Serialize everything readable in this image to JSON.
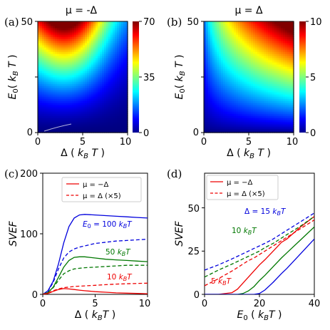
{
  "chart_data": [
    {
      "panel": "(a)",
      "type": "heatmap",
      "title": "μ = -Δ",
      "xlabel": "Δ ( k_B T )",
      "ylabel": "E_0 ( k_B T )",
      "xlim": [
        0,
        10
      ],
      "ylim": [
        0,
        50
      ],
      "xticks": [
        "0",
        "5",
        "10"
      ],
      "yticks": [
        "0",
        "25",
        "50"
      ],
      "colorbar": {
        "min": 0,
        "max": 70,
        "ticks": [
          "0",
          "35",
          "70"
        ],
        "colormap": "jet"
      }
    },
    {
      "panel": "(b)",
      "type": "heatmap",
      "title": "μ = Δ",
      "xlabel": "Δ ( k_B T )",
      "ylabel": "E_0 ( k_B T )",
      "xlim": [
        0,
        10
      ],
      "ylim": [
        0,
        50
      ],
      "xticks": [
        "0",
        "5",
        "10"
      ],
      "yticks": [
        "0",
        "25",
        "50"
      ],
      "colorbar": {
        "min": 0,
        "max": 10,
        "ticks": [
          "0",
          "5",
          "10"
        ],
        "colormap": "jet"
      }
    },
    {
      "panel": "(c)",
      "type": "line",
      "xlabel": "Δ ( k_B T )",
      "ylabel": "SVEF",
      "xlim": [
        0,
        10
      ],
      "ylim": [
        0,
        200
      ],
      "xticks": [
        "0",
        "5",
        "10"
      ],
      "yticks": [
        "0",
        "100",
        "200"
      ],
      "legend": {
        "placement": "top-right",
        "entries": [
          "μ = −Δ",
          "μ = Δ (×5)"
        ]
      },
      "annotations": [
        {
          "text": "E_0 = 100 k_BT",
          "color": "#0000dd"
        },
        {
          "text": "50 k_BT",
          "color": "#007700"
        },
        {
          "text": "10 k_BT",
          "color": "#ee0000"
        }
      ],
      "x": [
        0,
        0.5,
        1,
        1.5,
        2,
        2.5,
        3,
        3.5,
        4,
        5,
        6,
        7,
        8,
        9,
        10
      ],
      "series": [
        {
          "group": "E_0 = 100 k_BT",
          "style": "solid",
          "color": "#0000dd",
          "values": [
            0,
            6,
            22,
            50,
            85,
            112,
            126,
            131,
            132,
            131,
            130,
            129,
            128,
            127,
            126
          ]
        },
        {
          "group": "E_0 = 100 k_BT",
          "style": "dashed",
          "color": "#0000dd",
          "values": [
            0,
            5,
            20,
            42,
            60,
            70,
            75,
            78,
            80,
            84,
            86,
            88,
            89,
            90,
            91
          ]
        },
        {
          "group": "50 k_BT",
          "style": "solid",
          "color": "#007700",
          "values": [
            0,
            3,
            12,
            28,
            45,
            56,
            61,
            62,
            62,
            60,
            58,
            57,
            56,
            55,
            54
          ]
        },
        {
          "group": "50 k_BT",
          "style": "dashed",
          "color": "#007700",
          "values": [
            0,
            3,
            11,
            23,
            34,
            39,
            42,
            43,
            44,
            45,
            46,
            47,
            48,
            48,
            48
          ]
        },
        {
          "group": "10 k_BT",
          "style": "solid",
          "color": "#ee0000",
          "values": [
            0,
            1.5,
            5,
            8,
            9.5,
            9,
            8,
            7,
            6,
            4.5,
            3.5,
            2.5,
            2,
            1.5,
            1
          ]
        },
        {
          "group": "10 k_BT",
          "style": "dashed",
          "color": "#ee0000",
          "values": [
            0,
            2,
            6,
            9,
            11,
            12,
            13,
            13.5,
            14,
            15,
            16,
            17,
            17.5,
            18,
            18.5
          ]
        }
      ]
    },
    {
      "panel": "(d)",
      "type": "line",
      "xlabel": "E_0 ( k_BT )",
      "ylabel": "SVEF",
      "xlim": [
        0,
        40
      ],
      "ylim": [
        0,
        70
      ],
      "xticks": [
        "0",
        "20",
        "40"
      ],
      "yticks": [
        "0",
        "25",
        "50"
      ],
      "legend": {
        "placement": "top-left",
        "entries": [
          "μ = −Δ",
          "μ = Δ (×5)"
        ]
      },
      "annotations": [
        {
          "text": "Δ = 15 k_BT",
          "color": "#0000dd"
        },
        {
          "text": "10 k_BT",
          "color": "#007700"
        },
        {
          "text": "5 k_BT",
          "color": "#ee0000"
        }
      ],
      "x": [
        0,
        5,
        10,
        12,
        14,
        16,
        18,
        20,
        22,
        25,
        28,
        30,
        35,
        40
      ],
      "series": [
        {
          "group": "5 k_BT",
          "style": "solid",
          "color": "#ee0000",
          "values": [
            0,
            0,
            1,
            3,
            6.5,
            10,
            13.5,
            17,
            20,
            25,
            30,
            32,
            39,
            45
          ]
        },
        {
          "group": "10 k_BT",
          "style": "solid",
          "color": "#007700",
          "values": [
            0,
            0,
            0,
            0,
            0.5,
            2,
            4.5,
            8,
            11,
            16,
            21,
            24,
            31.5,
            39
          ]
        },
        {
          "group": "Δ = 15 k_BT",
          "style": "solid",
          "color": "#0000dd",
          "values": [
            0,
            0,
            0,
            0,
            0,
            0,
            0,
            0.5,
            2.5,
            7,
            12,
            15,
            23.5,
            32
          ]
        },
        {
          "group": "5 k_BT",
          "style": "dashed",
          "color": "#ee0000",
          "values": [
            5,
            9,
            13.5,
            15.5,
            17.5,
            19.5,
            21,
            23,
            25,
            28,
            31,
            33,
            38,
            43
          ]
        },
        {
          "group": "10 k_BT",
          "style": "dashed",
          "color": "#007700",
          "values": [
            10,
            14,
            17.5,
            19,
            20.5,
            22,
            23.5,
            25,
            27,
            29.5,
            32.5,
            34.5,
            39.5,
            45
          ]
        },
        {
          "group": "Δ = 15 k_BT",
          "style": "dashed",
          "color": "#0000dd",
          "values": [
            14,
            17,
            20.5,
            22,
            23.5,
            25,
            26.5,
            28,
            29.5,
            32,
            35,
            37,
            42,
            47
          ]
        }
      ]
    }
  ]
}
